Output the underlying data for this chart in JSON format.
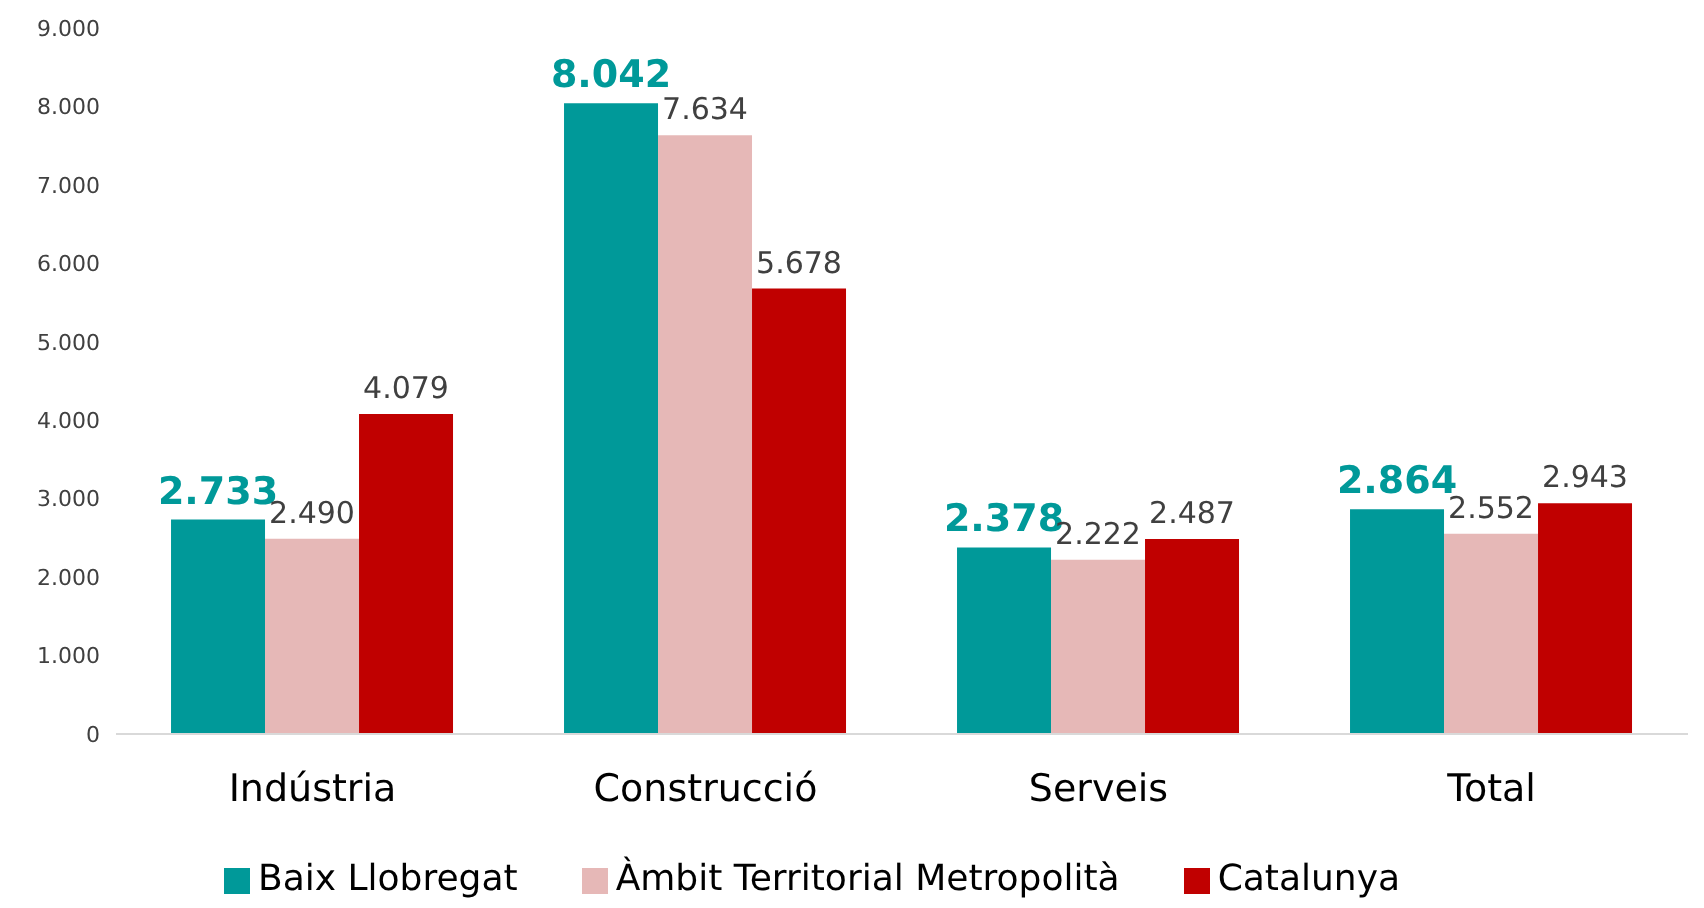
{
  "chart_data": {
    "type": "bar",
    "categories": [
      "Indústria",
      "Construcció",
      "Serveis",
      "Total"
    ],
    "series": [
      {
        "name": "Baix Llobregat",
        "color": "#009999",
        "values": [
          2733,
          8042,
          2378,
          2864
        ],
        "value_labels": [
          "2.733",
          "8.042",
          "2.378",
          "2.864"
        ]
      },
      {
        "name": "Àmbit Territorial Metropolità",
        "color": "#e6b8b7",
        "values": [
          2490,
          7634,
          2222,
          2552
        ],
        "value_labels": [
          "2.490",
          "7.634",
          "2.222",
          "2.552"
        ]
      },
      {
        "name": "Catalunya",
        "color": "#c00000",
        "values": [
          4079,
          5678,
          2487,
          2943
        ],
        "value_labels": [
          "4.079",
          "5.678",
          "2.487",
          "2.943"
        ]
      }
    ],
    "ylim": [
      0,
      9000
    ],
    "yticks": [
      {
        "value": 0,
        "label": "0"
      },
      {
        "value": 1000,
        "label": "1.000"
      },
      {
        "value": 2000,
        "label": "2.000"
      },
      {
        "value": 3000,
        "label": "3.000"
      },
      {
        "value": 4000,
        "label": "4.000"
      },
      {
        "value": 5000,
        "label": "5.000"
      },
      {
        "value": 6000,
        "label": "6.000"
      },
      {
        "value": 7000,
        "label": "7.000"
      },
      {
        "value": 8000,
        "label": "8.000"
      },
      {
        "value": 9000,
        "label": "9.000"
      }
    ],
    "grid": false,
    "legend": "bottom"
  }
}
